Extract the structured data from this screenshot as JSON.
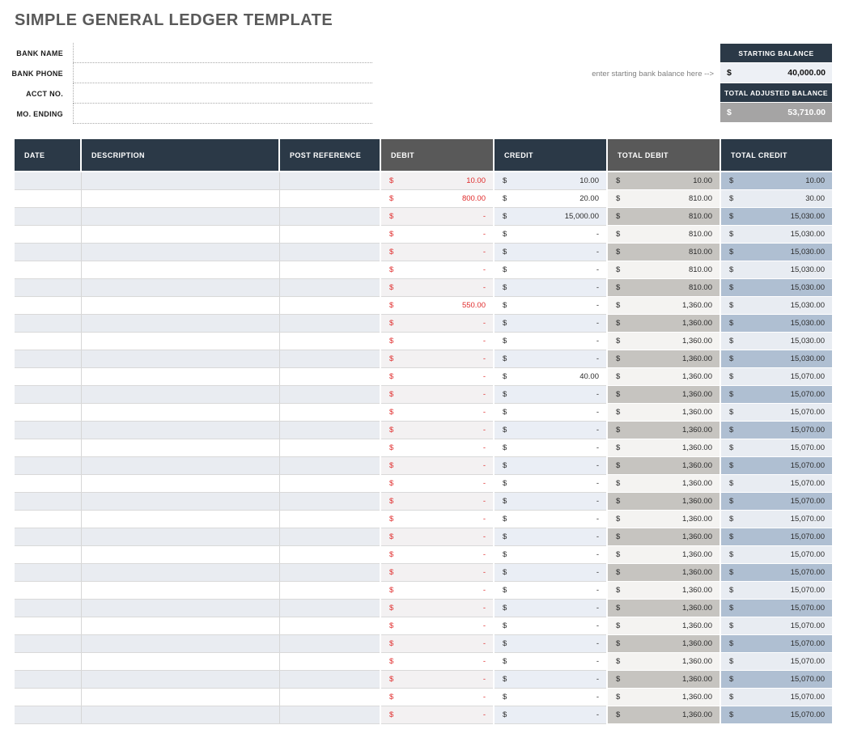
{
  "title": "SIMPLE GENERAL LEDGER TEMPLATE",
  "bank_info": {
    "fields": [
      {
        "label": "BANK NAME",
        "value": ""
      },
      {
        "label": "BANK PHONE",
        "value": ""
      },
      {
        "label": "ACCT NO.",
        "value": ""
      },
      {
        "label": "MO. ENDING",
        "value": ""
      }
    ]
  },
  "balance_panel": {
    "helper_text": "enter starting bank balance here -->",
    "starting": {
      "label": "STARTING BALANCE",
      "currency": "$",
      "value": "40,000.00"
    },
    "adjusted": {
      "label": "TOTAL ADJUSTED BALANCE",
      "currency": "$",
      "value": "53,710.00"
    }
  },
  "ledger_table": {
    "currency_symbol": "$",
    "columns": [
      {
        "key": "date",
        "label": "DATE"
      },
      {
        "key": "description",
        "label": "DESCRIPTION"
      },
      {
        "key": "post_reference",
        "label": "POST REFERENCE"
      },
      {
        "key": "debit",
        "label": "DEBIT"
      },
      {
        "key": "credit",
        "label": "CREDIT"
      },
      {
        "key": "total_debit",
        "label": "TOTAL DEBIT"
      },
      {
        "key": "total_credit",
        "label": "TOTAL CREDIT"
      }
    ],
    "rows": [
      {
        "date": "",
        "description": "",
        "post_reference": "",
        "debit": "10.00",
        "credit": "10.00",
        "total_debit": "10.00",
        "total_credit": "10.00"
      },
      {
        "date": "",
        "description": "",
        "post_reference": "",
        "debit": "800.00",
        "credit": "20.00",
        "total_debit": "810.00",
        "total_credit": "30.00"
      },
      {
        "date": "",
        "description": "",
        "post_reference": "",
        "debit": "-",
        "credit": "15,000.00",
        "total_debit": "810.00",
        "total_credit": "15,030.00"
      },
      {
        "date": "",
        "description": "",
        "post_reference": "",
        "debit": "-",
        "credit": "-",
        "total_debit": "810.00",
        "total_credit": "15,030.00"
      },
      {
        "date": "",
        "description": "",
        "post_reference": "",
        "debit": "-",
        "credit": "-",
        "total_debit": "810.00",
        "total_credit": "15,030.00"
      },
      {
        "date": "",
        "description": "",
        "post_reference": "",
        "debit": "-",
        "credit": "-",
        "total_debit": "810.00",
        "total_credit": "15,030.00"
      },
      {
        "date": "",
        "description": "",
        "post_reference": "",
        "debit": "-",
        "credit": "-",
        "total_debit": "810.00",
        "total_credit": "15,030.00"
      },
      {
        "date": "",
        "description": "",
        "post_reference": "",
        "debit": "550.00",
        "credit": "-",
        "total_debit": "1,360.00",
        "total_credit": "15,030.00"
      },
      {
        "date": "",
        "description": "",
        "post_reference": "",
        "debit": "-",
        "credit": "-",
        "total_debit": "1,360.00",
        "total_credit": "15,030.00"
      },
      {
        "date": "",
        "description": "",
        "post_reference": "",
        "debit": "-",
        "credit": "-",
        "total_debit": "1,360.00",
        "total_credit": "15,030.00"
      },
      {
        "date": "",
        "description": "",
        "post_reference": "",
        "debit": "-",
        "credit": "-",
        "total_debit": "1,360.00",
        "total_credit": "15,030.00"
      },
      {
        "date": "",
        "description": "",
        "post_reference": "",
        "debit": "-",
        "credit": "40.00",
        "total_debit": "1,360.00",
        "total_credit": "15,070.00"
      },
      {
        "date": "",
        "description": "",
        "post_reference": "",
        "debit": "-",
        "credit": "-",
        "total_debit": "1,360.00",
        "total_credit": "15,070.00"
      },
      {
        "date": "",
        "description": "",
        "post_reference": "",
        "debit": "-",
        "credit": "-",
        "total_debit": "1,360.00",
        "total_credit": "15,070.00"
      },
      {
        "date": "",
        "description": "",
        "post_reference": "",
        "debit": "-",
        "credit": "-",
        "total_debit": "1,360.00",
        "total_credit": "15,070.00"
      },
      {
        "date": "",
        "description": "",
        "post_reference": "",
        "debit": "-",
        "credit": "-",
        "total_debit": "1,360.00",
        "total_credit": "15,070.00"
      },
      {
        "date": "",
        "description": "",
        "post_reference": "",
        "debit": "-",
        "credit": "-",
        "total_debit": "1,360.00",
        "total_credit": "15,070.00"
      },
      {
        "date": "",
        "description": "",
        "post_reference": "",
        "debit": "-",
        "credit": "-",
        "total_debit": "1,360.00",
        "total_credit": "15,070.00"
      },
      {
        "date": "",
        "description": "",
        "post_reference": "",
        "debit": "-",
        "credit": "-",
        "total_debit": "1,360.00",
        "total_credit": "15,070.00"
      },
      {
        "date": "",
        "description": "",
        "post_reference": "",
        "debit": "-",
        "credit": "-",
        "total_debit": "1,360.00",
        "total_credit": "15,070.00"
      },
      {
        "date": "",
        "description": "",
        "post_reference": "",
        "debit": "-",
        "credit": "-",
        "total_debit": "1,360.00",
        "total_credit": "15,070.00"
      },
      {
        "date": "",
        "description": "",
        "post_reference": "",
        "debit": "-",
        "credit": "-",
        "total_debit": "1,360.00",
        "total_credit": "15,070.00"
      },
      {
        "date": "",
        "description": "",
        "post_reference": "",
        "debit": "-",
        "credit": "-",
        "total_debit": "1,360.00",
        "total_credit": "15,070.00"
      },
      {
        "date": "",
        "description": "",
        "post_reference": "",
        "debit": "-",
        "credit": "-",
        "total_debit": "1,360.00",
        "total_credit": "15,070.00"
      },
      {
        "date": "",
        "description": "",
        "post_reference": "",
        "debit": "-",
        "credit": "-",
        "total_debit": "1,360.00",
        "total_credit": "15,070.00"
      },
      {
        "date": "",
        "description": "",
        "post_reference": "",
        "debit": "-",
        "credit": "-",
        "total_debit": "1,360.00",
        "total_credit": "15,070.00"
      },
      {
        "date": "",
        "description": "",
        "post_reference": "",
        "debit": "-",
        "credit": "-",
        "total_debit": "1,360.00",
        "total_credit": "15,070.00"
      },
      {
        "date": "",
        "description": "",
        "post_reference": "",
        "debit": "-",
        "credit": "-",
        "total_debit": "1,360.00",
        "total_credit": "15,070.00"
      },
      {
        "date": "",
        "description": "",
        "post_reference": "",
        "debit": "-",
        "credit": "-",
        "total_debit": "1,360.00",
        "total_credit": "15,070.00"
      },
      {
        "date": "",
        "description": "",
        "post_reference": "",
        "debit": "-",
        "credit": "-",
        "total_debit": "1,360.00",
        "total_credit": "15,070.00"
      },
      {
        "date": "",
        "description": "",
        "post_reference": "",
        "debit": "-",
        "credit": "-",
        "total_debit": "1,360.00",
        "total_credit": "15,070.00"
      }
    ]
  },
  "colors": {
    "navy": "#2b3947",
    "header_gray": "#595959",
    "title_gray": "#595959",
    "debit_red": "#e02b2b",
    "row_tint": "#e9ecf1",
    "total_debit_tint": "#c6c4c0",
    "total_credit_tint": "#afbfd2",
    "adjusted_balance_bg": "#a5a4a4",
    "starting_balance_bg": "#edf0f5"
  }
}
